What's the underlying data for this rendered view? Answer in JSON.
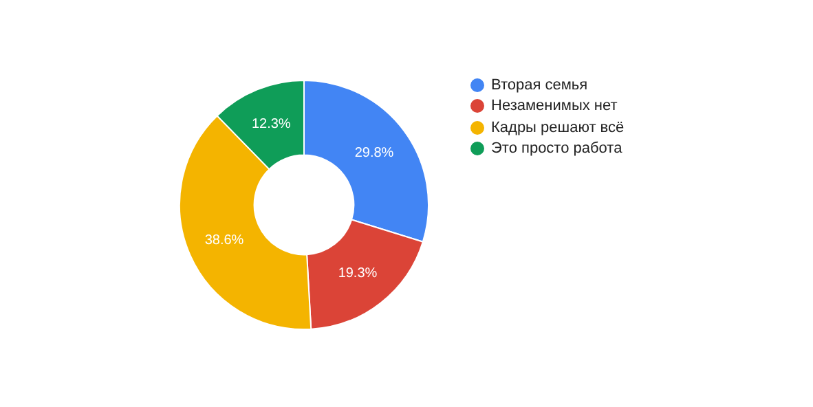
{
  "chart_data": {
    "type": "donut",
    "categories": [
      "Вторая семья",
      "Незаменимых нет",
      "Кадры решают всё",
      "Это просто работа"
    ],
    "values": [
      29.8,
      19.3,
      38.6,
      12.3
    ],
    "colors": [
      "#4285f4",
      "#db4437",
      "#f4b400",
      "#0f9d58"
    ],
    "value_labels": [
      "29.8%",
      "19.3%",
      "38.6%",
      "12.3%"
    ],
    "legend": "right"
  }
}
